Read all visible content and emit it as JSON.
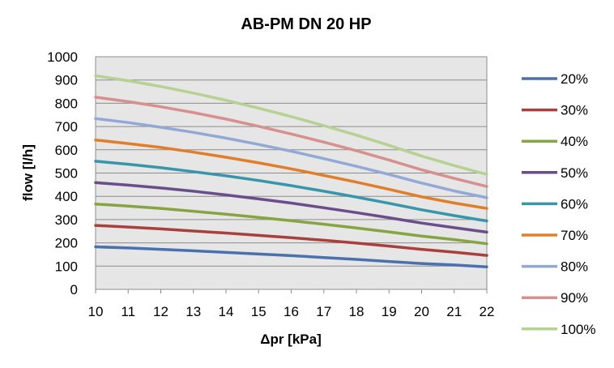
{
  "chart_data": {
    "type": "line",
    "title": "AB-PM DN 20 HP",
    "xlabel": "Δpr [kPa]",
    "ylabel": "flow [l/h]",
    "xlim": [
      10,
      22
    ],
    "ylim": [
      0,
      1000
    ],
    "x_ticks": [
      10,
      11,
      12,
      13,
      14,
      15,
      16,
      17,
      18,
      19,
      20,
      21,
      22
    ],
    "y_ticks": [
      0,
      100,
      200,
      300,
      400,
      500,
      600,
      700,
      800,
      900,
      1000
    ],
    "grid": "horizontal",
    "plot_background": "#e6e6e6",
    "legend_position": "right",
    "x": [
      10,
      11,
      12,
      13,
      14,
      15,
      16,
      17,
      18,
      19,
      20,
      21,
      22
    ],
    "series": [
      {
        "name": "20%",
        "color": "#4a71ad",
        "values": [
          183,
          178,
          172,
          166,
          159,
          152,
          145,
          137,
          129,
          120,
          111,
          105,
          97
        ]
      },
      {
        "name": "30%",
        "color": "#a8403d",
        "values": [
          275,
          268,
          260,
          251,
          242,
          232,
          222,
          211,
          199,
          186,
          172,
          160,
          146
        ]
      },
      {
        "name": "40%",
        "color": "#87a443",
        "values": [
          367,
          358,
          348,
          336,
          323,
          309,
          295,
          280,
          264,
          247,
          229,
          214,
          196
        ]
      },
      {
        "name": "50%",
        "color": "#6b4d8c",
        "values": [
          459,
          448,
          436,
          422,
          406,
          389,
          371,
          351,
          330,
          308,
          285,
          265,
          246
        ]
      },
      {
        "name": "60%",
        "color": "#3896aa",
        "values": [
          551,
          538,
          523,
          506,
          488,
          468,
          446,
          422,
          397,
          370,
          342,
          317,
          294
        ]
      },
      {
        "name": "70%",
        "color": "#e07e2c",
        "values": [
          642,
          627,
          610,
          590,
          568,
          544,
          518,
          490,
          461,
          430,
          398,
          371,
          348
        ]
      },
      {
        "name": "80%",
        "color": "#92a9d6",
        "values": [
          734,
          717,
          697,
          675,
          650,
          623,
          594,
          562,
          529,
          494,
          457,
          423,
          394
        ]
      },
      {
        "name": "90%",
        "color": "#d6908d",
        "values": [
          826,
          807,
          785,
          760,
          732,
          701,
          668,
          633,
          596,
          556,
          514,
          477,
          442
        ]
      },
      {
        "name": "100%",
        "color": "#b6d192",
        "values": [
          918,
          897,
          872,
          844,
          813,
          779,
          743,
          704,
          663,
          619,
          573,
          532,
          494
        ]
      }
    ]
  }
}
